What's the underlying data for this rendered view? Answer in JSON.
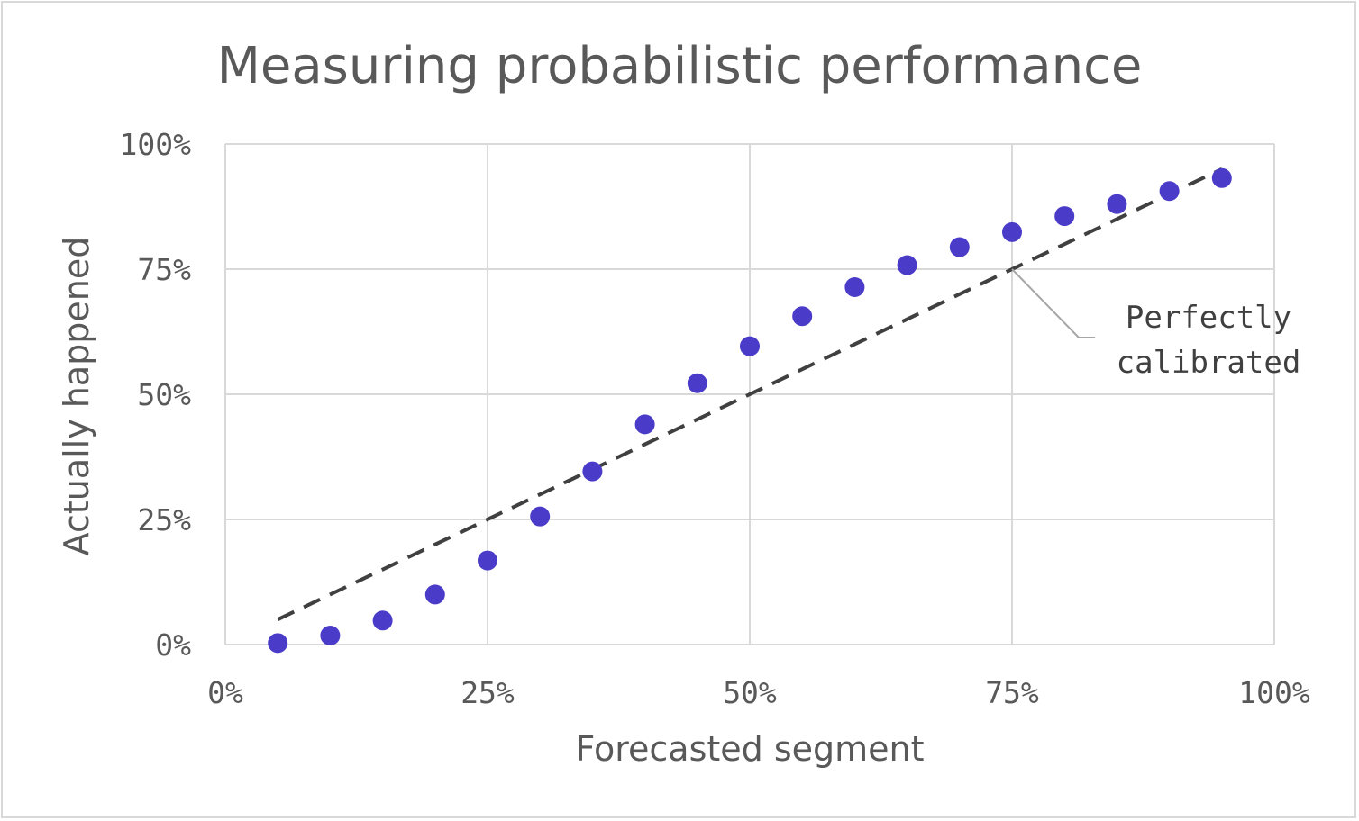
{
  "chart_data": {
    "type": "scatter",
    "title": "Measuring probabilistic performance",
    "xlabel": "Forecasted segment",
    "ylabel": "Actually happened",
    "xlim": [
      0,
      100
    ],
    "ylim": [
      0,
      100
    ],
    "x_ticks": [
      "0%",
      "25%",
      "50%",
      "75%",
      "100%"
    ],
    "y_ticks": [
      "0%",
      "25%",
      "50%",
      "75%",
      "100%"
    ],
    "grid": true,
    "series": [
      {
        "color": "#4a3cc8",
        "x": [
          5,
          10,
          15,
          20,
          25,
          30,
          35,
          40,
          45,
          50,
          55,
          60,
          65,
          70,
          75,
          80,
          85,
          90,
          95
        ],
        "y": [
          0.3,
          1.8,
          4.8,
          10,
          16.8,
          25.6,
          34.6,
          44,
          52.2,
          59.6,
          65.6,
          71.4,
          75.8,
          79.4,
          82.4,
          85.6,
          88,
          90.6,
          93.2
        ]
      }
    ],
    "reference_line": {
      "style": "dashed",
      "color": "#404040",
      "from": [
        5,
        5
      ],
      "to": [
        95,
        95
      ]
    },
    "annotation": {
      "lines": [
        "Perfectly",
        "calibrated"
      ],
      "points_to": [
        75,
        75
      ]
    }
  },
  "colors": {
    "marker": "#4a3cc8",
    "grid": "#d9d9d9",
    "text": "#595959",
    "dashed_line": "#404040"
  }
}
